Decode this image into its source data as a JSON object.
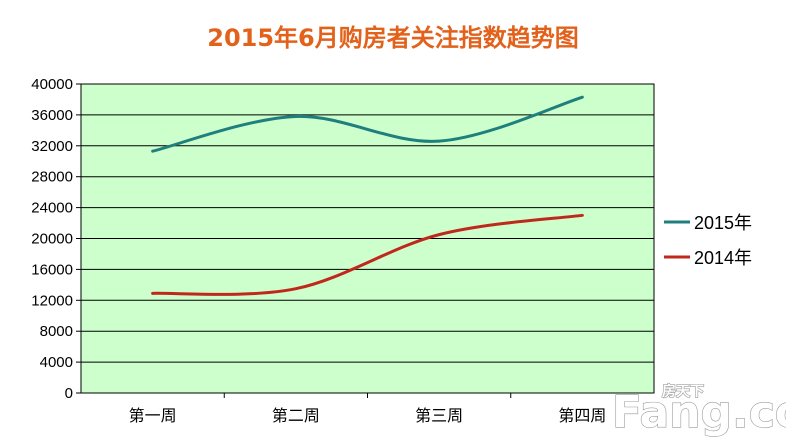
{
  "chart_data": {
    "type": "line",
    "title": "2015年6月购房者关注指数趋势图",
    "categories": [
      "第一周",
      "第二周",
      "第三周",
      "第四周"
    ],
    "series": [
      {
        "name": "2015年",
        "values": [
          31300,
          35800,
          32600,
          38300
        ],
        "color": "#1f7f7c"
      },
      {
        "name": "2014年",
        "values": [
          12900,
          13500,
          20500,
          23000
        ],
        "color": "#c0281e"
      }
    ],
    "xlabel": "",
    "ylabel": "",
    "ylim": [
      0,
      40000
    ],
    "yticks": [
      0,
      4000,
      8000,
      12000,
      16000,
      20000,
      24000,
      28000,
      32000,
      36000,
      40000
    ],
    "grid": true,
    "legend_position": "right",
    "plot_background": "#ccffcc"
  },
  "watermark": {
    "brand": "Fang.com",
    "top_text": "房天下"
  }
}
